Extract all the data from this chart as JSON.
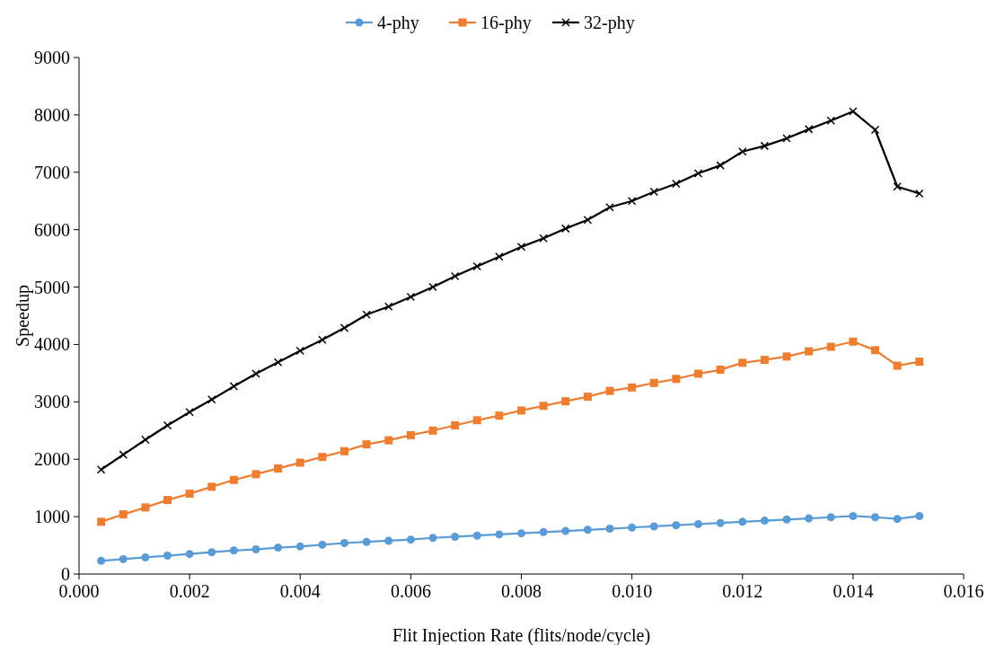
{
  "chart_data": {
    "type": "line",
    "xlabel": "Flit Injection Rate (flits/node/cycle)",
    "ylabel": "Speedup",
    "legend": "top",
    "grid": false,
    "line_style": "solid",
    "x": [
      0.0004,
      0.0008,
      0.0012,
      0.0016,
      0.002,
      0.0024,
      0.0028,
      0.0032,
      0.0036,
      0.004,
      0.0044,
      0.0048,
      0.0052,
      0.0056,
      0.006,
      0.0064,
      0.0068,
      0.0072,
      0.0076,
      0.008,
      0.0084,
      0.0088,
      0.0092,
      0.0096,
      0.01,
      0.0104,
      0.0108,
      0.0112,
      0.0116,
      0.012,
      0.0124,
      0.0128,
      0.0132,
      0.0136,
      0.014,
      0.0144,
      0.0148,
      0.0152
    ],
    "xlim": [
      0,
      0.016
    ],
    "xticks": [
      {
        "value": 0,
        "label": "0.000"
      },
      {
        "value": 0.002,
        "label": "0.002"
      },
      {
        "value": 0.004,
        "label": "0.004"
      },
      {
        "value": 0.006,
        "label": "0.006"
      },
      {
        "value": 0.008,
        "label": "0.008"
      },
      {
        "value": 0.01,
        "label": "0.010"
      },
      {
        "value": 0.012,
        "label": "0.012"
      },
      {
        "value": 0.014,
        "label": "0.014"
      },
      {
        "value": 0.016,
        "label": "0.016"
      }
    ],
    "ylim": [
      0,
      9000
    ],
    "yticks": [
      0,
      1000,
      2000,
      3000,
      4000,
      5000,
      6000,
      7000,
      8000,
      9000
    ],
    "series": [
      {
        "name": "4-phy",
        "color": "#5b9bd5",
        "marker": "circle",
        "values": [
          230,
          260,
          290,
          320,
          350,
          380,
          410,
          430,
          460,
          480,
          510,
          540,
          560,
          580,
          600,
          630,
          650,
          670,
          690,
          710,
          730,
          750,
          770,
          790,
          810,
          830,
          850,
          870,
          890,
          910,
          930,
          950,
          970,
          990,
          1010,
          990,
          960,
          1010
        ]
      },
      {
        "name": "16-phy",
        "color": "#ed7d31",
        "marker": "square",
        "values": [
          910,
          1040,
          1160,
          1290,
          1400,
          1520,
          1640,
          1740,
          1840,
          1940,
          2040,
          2140,
          2260,
          2330,
          2420,
          2500,
          2590,
          2680,
          2760,
          2850,
          2930,
          3010,
          3090,
          3190,
          3250,
          3330,
          3400,
          3490,
          3560,
          3680,
          3730,
          3790,
          3880,
          3960,
          4050,
          3900,
          3630,
          3700
        ]
      },
      {
        "name": "32-phy",
        "color": "#000000",
        "marker": "cross",
        "values": [
          1820,
          2080,
          2340,
          2590,
          2820,
          3040,
          3270,
          3490,
          3690,
          3890,
          4080,
          4290,
          4520,
          4660,
          4830,
          5000,
          5190,
          5360,
          5530,
          5700,
          5850,
          6020,
          6170,
          6390,
          6500,
          6660,
          6800,
          6980,
          7120,
          7360,
          7460,
          7590,
          7750,
          7900,
          8060,
          7740,
          6750,
          6630
        ]
      }
    ]
  }
}
